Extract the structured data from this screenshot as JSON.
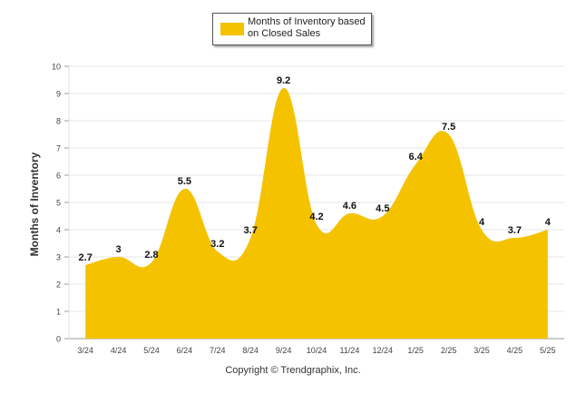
{
  "chart_data": {
    "type": "area",
    "categories": [
      "3/24",
      "4/24",
      "5/24",
      "6/24",
      "7/24",
      "8/24",
      "9/24",
      "10/24",
      "11/24",
      "12/24",
      "1/25",
      "2/25",
      "3/25",
      "4/25",
      "5/25"
    ],
    "series": [
      {
        "name": "Months of Inventory based on Closed Sales",
        "values": [
          2.7,
          3,
          2.8,
          5.5,
          3.2,
          3.7,
          9.2,
          4.2,
          4.6,
          4.5,
          6.4,
          7.5,
          4,
          3.7,
          4
        ],
        "labels": [
          "2.7",
          "3",
          "2.8",
          "5.5",
          "3.2",
          "3.7",
          "9.2",
          "4.2",
          "4.6",
          "4.5",
          "6.4",
          "7.5",
          "4",
          "3.7",
          "4"
        ]
      }
    ],
    "ylabel": "Months of Inventory",
    "xlabel": "",
    "ylim": [
      0,
      10
    ],
    "yticks": [
      "0",
      "1",
      "2",
      "3",
      "4",
      "5",
      "6",
      "7",
      "8",
      "9",
      "10"
    ],
    "grid": true,
    "legend": "top-center",
    "color": "#F5C200"
  },
  "footer": {
    "copyright": "Copyright © Trendgraphix, Inc."
  }
}
